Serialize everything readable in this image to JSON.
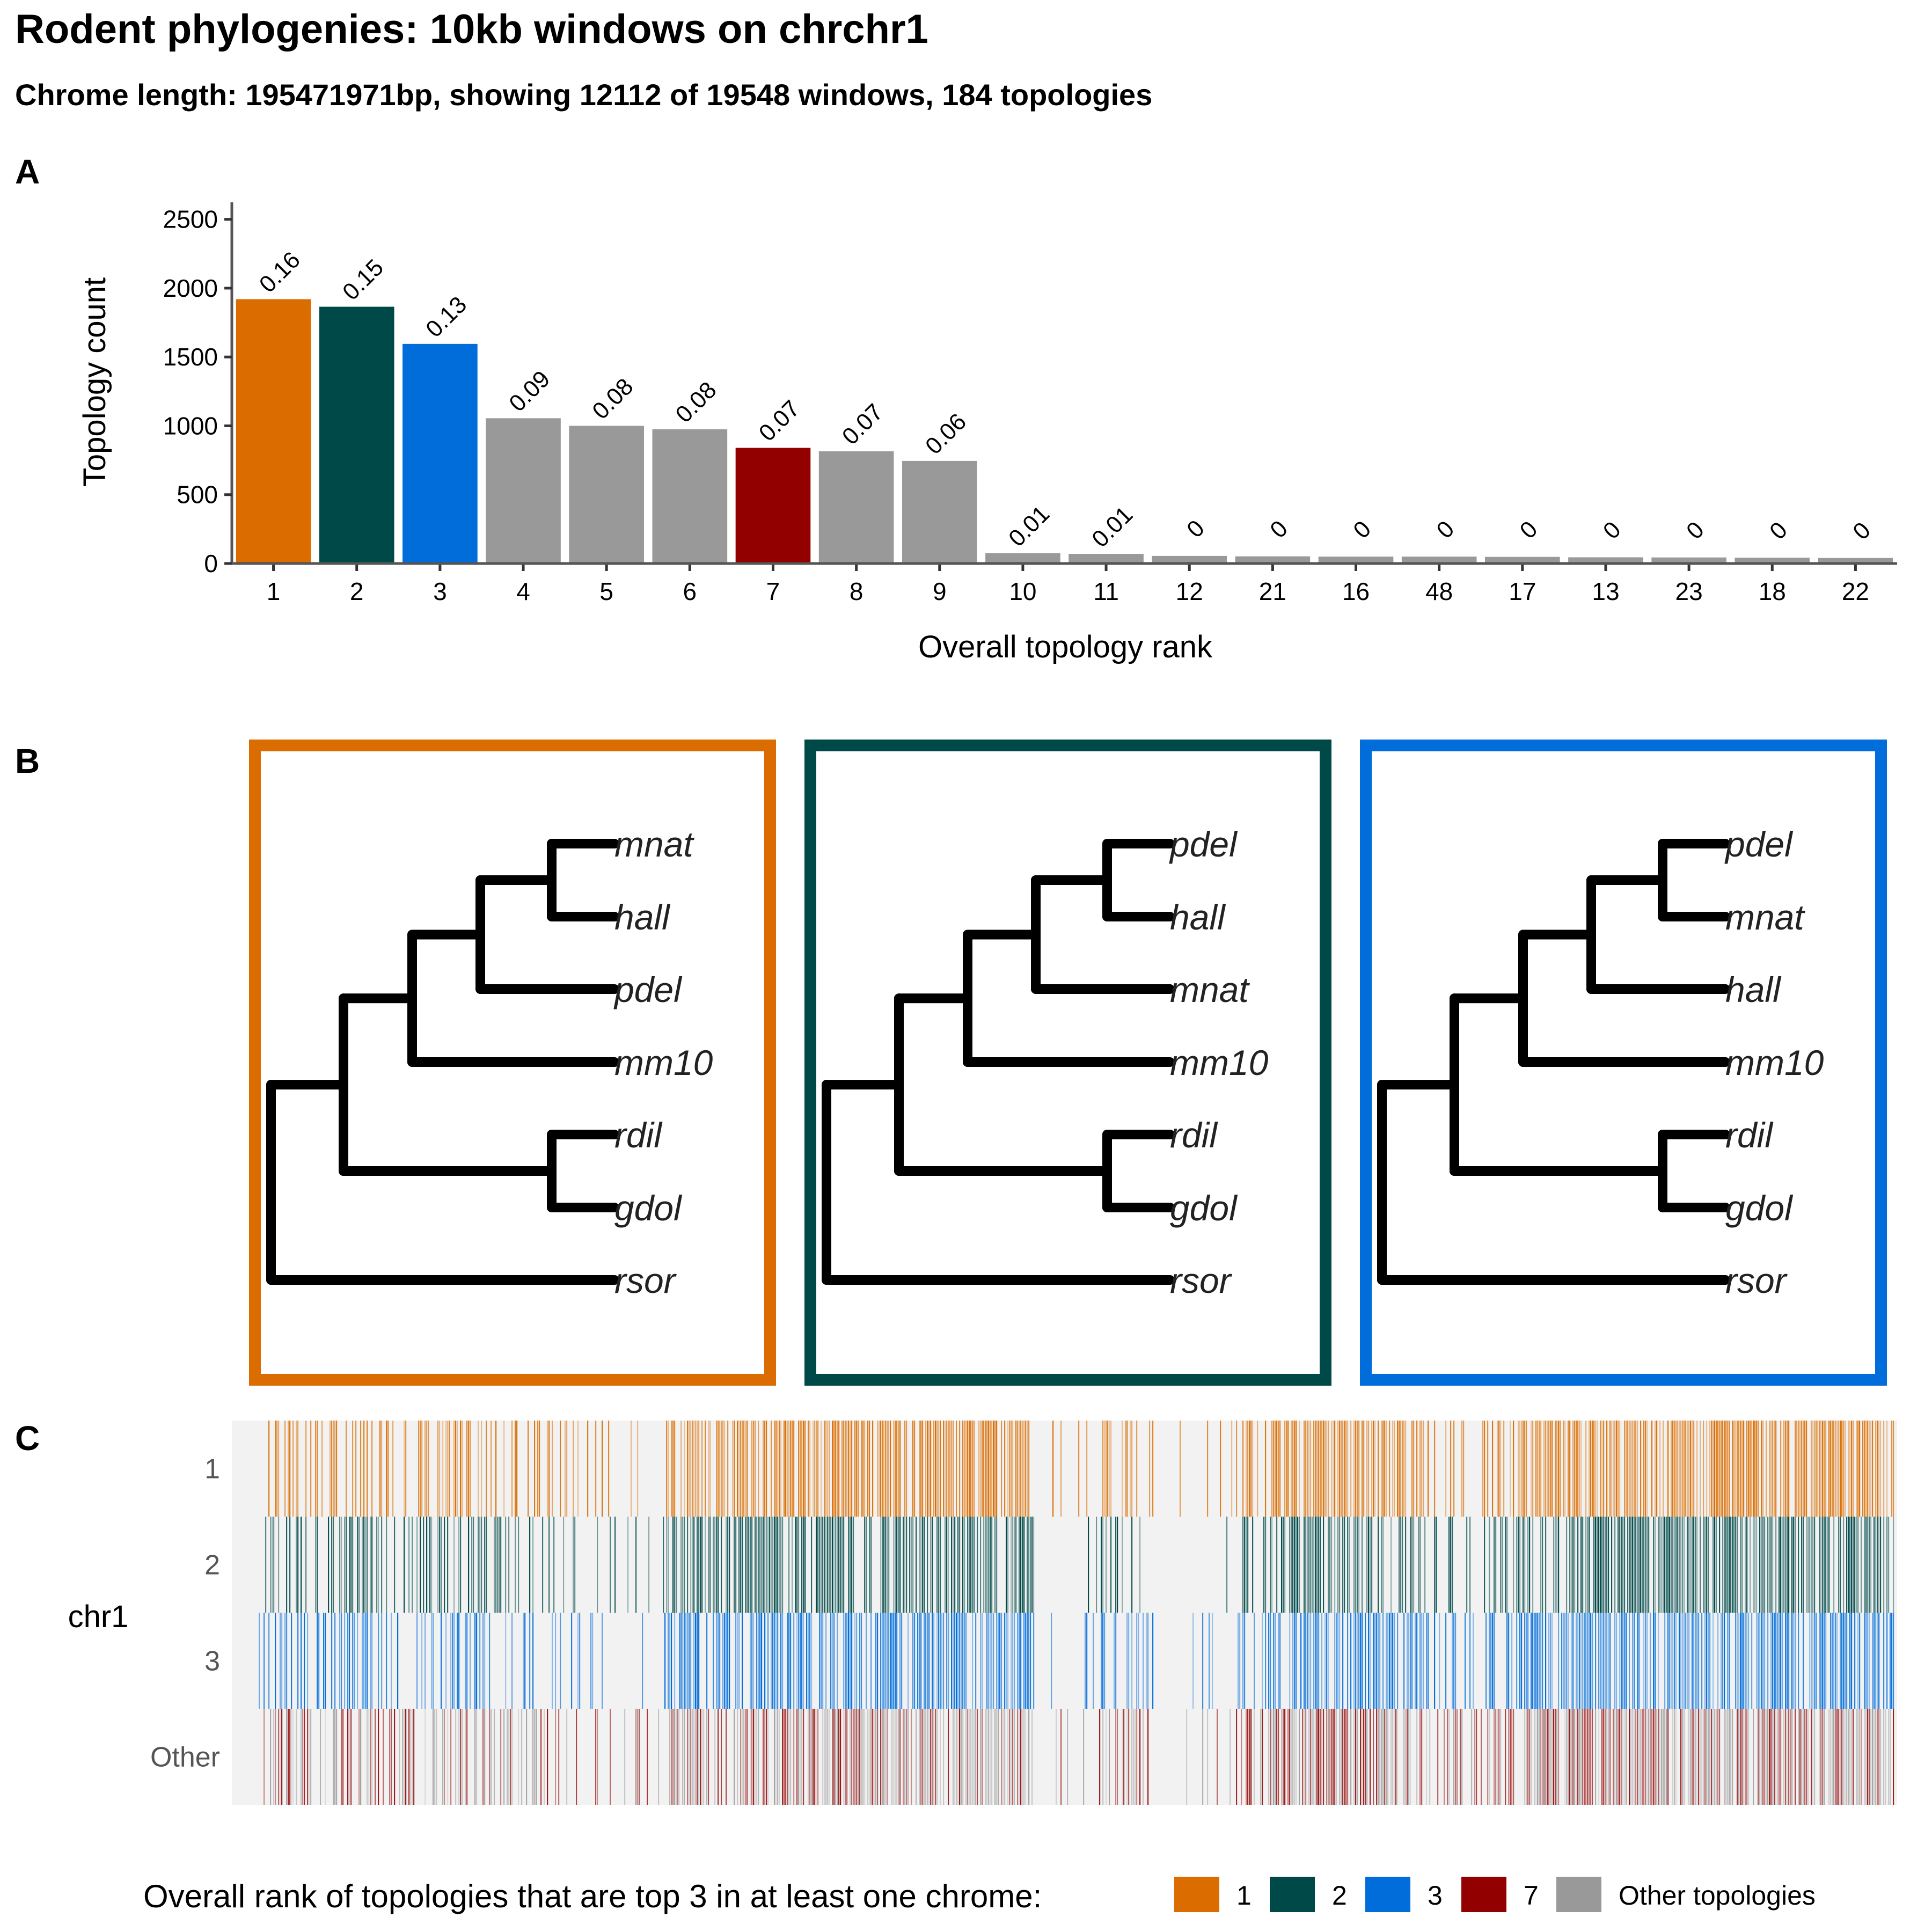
{
  "figure": {
    "title": "Rodent phylogenies: 10kb windows on chrchr1",
    "subtitle": "Chrome length: 195471971bp, showing 12112 of 19548 windows, 184 topologies"
  },
  "panels": {
    "a": "A",
    "b": "B",
    "c": "C"
  },
  "colors": {
    "rank1": "#DB6D00",
    "rank2": "#004949",
    "rank3": "#006DDB",
    "rank7": "#920000",
    "other": "#999999",
    "track_bg": "#F2F2F2",
    "other_track_gray": "#BDBDBD"
  },
  "chart_data": [
    {
      "type": "bar",
      "panel": "A",
      "xlabel": "Overall topology rank",
      "ylabel": "Topology count",
      "ylim": [
        0,
        2600
      ],
      "yticks": [
        0,
        500,
        1000,
        1500,
        2000,
        2500
      ],
      "categories": [
        "1",
        "2",
        "3",
        "4",
        "5",
        "6",
        "7",
        "8",
        "9",
        "10",
        "11",
        "12",
        "21",
        "16",
        "48",
        "17",
        "13",
        "23",
        "18",
        "22"
      ],
      "values": [
        1920,
        1865,
        1595,
        1055,
        1000,
        975,
        840,
        815,
        745,
        75,
        70,
        55,
        52,
        50,
        50,
        48,
        45,
        44,
        42,
        40
      ],
      "labels": [
        "0.16",
        "0.15",
        "0.13",
        "0.09",
        "0.08",
        "0.08",
        "0.07",
        "0.07",
        "0.06",
        "0.01",
        "0.01",
        "0",
        "0",
        "0",
        "0",
        "0",
        "0",
        "0",
        "0",
        "0"
      ],
      "bar_colors": [
        "rank1",
        "rank2",
        "rank3",
        "other",
        "other",
        "other",
        "rank7",
        "other",
        "other",
        "other",
        "other",
        "other",
        "other",
        "other",
        "other",
        "other",
        "other",
        "other",
        "other",
        "other"
      ],
      "grid": false
    },
    {
      "type": "tree",
      "panel": "B",
      "trees": [
        {
          "color": "rank1",
          "tips": [
            "mnat",
            "hall",
            "pdel",
            "mm10",
            "rdil",
            "gdol",
            "rsor"
          ]
        },
        {
          "color": "rank2",
          "tips": [
            "pdel",
            "hall",
            "mnat",
            "mm10",
            "rdil",
            "gdol",
            "rsor"
          ]
        },
        {
          "color": "rank3",
          "tips": [
            "pdel",
            "mnat",
            "hall",
            "mm10",
            "rdil",
            "gdol",
            "rsor"
          ]
        }
      ]
    },
    {
      "type": "heatmap",
      "panel": "C",
      "chromosome": "chr1",
      "rows": [
        "1",
        "2",
        "3",
        "Other"
      ],
      "row_colors": [
        "rank1",
        "rank2",
        "rank3",
        "other"
      ],
      "windows_shown": 12112,
      "windows_total": 19548,
      "density_profile": [
        [
          0.0,
          0.3
        ],
        [
          0.02,
          0.55
        ],
        [
          0.04,
          0.3
        ],
        [
          0.06,
          0.55
        ],
        [
          0.08,
          0.35
        ],
        [
          0.1,
          0.5
        ],
        [
          0.12,
          0.55
        ],
        [
          0.14,
          0.45
        ],
        [
          0.17,
          0.35
        ],
        [
          0.2,
          0.25
        ],
        [
          0.22,
          0.2
        ],
        [
          0.246,
          0.1
        ],
        [
          0.25,
          0.8
        ],
        [
          0.28,
          0.7
        ],
        [
          0.32,
          0.75
        ],
        [
          0.36,
          0.8
        ],
        [
          0.4,
          0.75
        ],
        [
          0.43,
          0.9
        ],
        [
          0.47,
          0.8
        ],
        [
          0.475,
          0.05
        ],
        [
          0.5,
          0.05
        ],
        [
          0.52,
          0.3
        ],
        [
          0.535,
          0.4
        ],
        [
          0.55,
          0.1
        ],
        [
          0.59,
          0.05
        ],
        [
          0.6,
          0.25
        ],
        [
          0.61,
          0.7
        ],
        [
          0.64,
          0.8
        ],
        [
          0.67,
          0.85
        ],
        [
          0.7,
          0.6
        ],
        [
          0.72,
          0.4
        ],
        [
          0.75,
          0.3
        ],
        [
          0.77,
          0.6
        ],
        [
          0.78,
          0.85
        ],
        [
          0.82,
          0.85
        ],
        [
          0.86,
          0.8
        ],
        [
          0.9,
          0.85
        ],
        [
          0.94,
          0.8
        ],
        [
          0.98,
          0.85
        ],
        [
          1.0,
          0.75
        ]
      ]
    }
  ],
  "legend": {
    "title": "Overall rank of topologies that are top 3 in at least one chrome:",
    "items": [
      {
        "label": "1",
        "color": "rank1"
      },
      {
        "label": "2",
        "color": "rank2"
      },
      {
        "label": "3",
        "color": "rank3"
      },
      {
        "label": "7",
        "color": "rank7"
      },
      {
        "label": "Other topologies",
        "color": "other"
      }
    ]
  }
}
